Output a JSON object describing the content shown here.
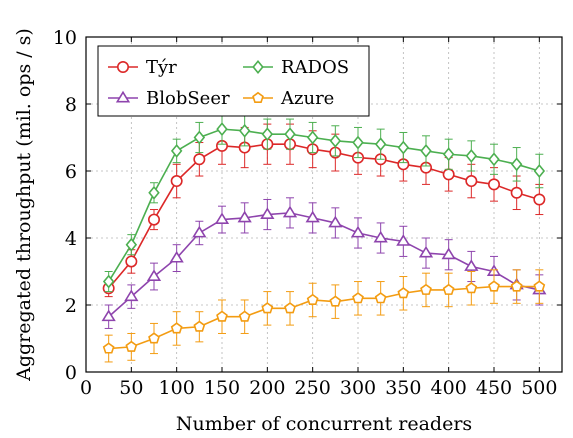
{
  "chart_data": {
    "type": "line",
    "title": "",
    "xlabel": "Number of concurrent readers",
    "ylabel": "Aggregated throughput (mil. ops / s)",
    "xlim": [
      0,
      525
    ],
    "ylim": [
      0,
      10
    ],
    "xticks": [
      0,
      50,
      100,
      150,
      200,
      250,
      300,
      350,
      400,
      450,
      500
    ],
    "yticks": [
      0,
      2,
      4,
      6,
      8,
      10
    ],
    "grid": true,
    "legend_position": "top-left",
    "x": [
      25,
      50,
      75,
      100,
      125,
      150,
      175,
      200,
      225,
      250,
      275,
      300,
      325,
      350,
      375,
      400,
      425,
      450,
      475,
      500
    ],
    "series": [
      {
        "name": "Týr",
        "color": "#dc2828",
        "marker": "circle",
        "values": [
          2.5,
          3.3,
          4.55,
          5.7,
          6.35,
          6.75,
          6.7,
          6.8,
          6.8,
          6.65,
          6.55,
          6.4,
          6.35,
          6.2,
          6.1,
          5.9,
          5.7,
          5.6,
          5.35,
          5.15
        ],
        "errors": [
          0.25,
          0.35,
          0.3,
          0.5,
          0.5,
          0.55,
          0.6,
          0.6,
          0.6,
          0.55,
          0.55,
          0.5,
          0.5,
          0.5,
          0.5,
          0.5,
          0.5,
          0.5,
          0.5,
          0.45
        ]
      },
      {
        "name": "RADOS",
        "color": "#4caf50",
        "marker": "diamond",
        "values": [
          2.7,
          3.8,
          5.35,
          6.6,
          7.0,
          7.25,
          7.2,
          7.1,
          7.1,
          7.0,
          6.9,
          6.85,
          6.8,
          6.7,
          6.6,
          6.5,
          6.45,
          6.35,
          6.2,
          6.0
        ],
        "errors": [
          0.3,
          0.3,
          0.3,
          0.35,
          0.45,
          0.45,
          0.45,
          0.45,
          0.45,
          0.45,
          0.45,
          0.45,
          0.45,
          0.45,
          0.45,
          0.45,
          0.45,
          0.45,
          0.5,
          0.5
        ]
      },
      {
        "name": "BlobSeer",
        "color": "#8e44ad",
        "marker": "triangle",
        "values": [
          1.65,
          2.25,
          2.85,
          3.4,
          4.15,
          4.55,
          4.6,
          4.7,
          4.75,
          4.6,
          4.45,
          4.15,
          4.0,
          3.9,
          3.55,
          3.5,
          3.15,
          3.0,
          2.6,
          2.45
        ],
        "errors": [
          0.35,
          0.35,
          0.4,
          0.4,
          0.35,
          0.4,
          0.45,
          0.45,
          0.45,
          0.45,
          0.45,
          0.45,
          0.45,
          0.45,
          0.45,
          0.45,
          0.45,
          0.45,
          0.45,
          0.45
        ]
      },
      {
        "name": "Azure",
        "color": "#f39c12",
        "marker": "pentagon",
        "values": [
          0.7,
          0.75,
          1.0,
          1.3,
          1.35,
          1.65,
          1.65,
          1.9,
          1.9,
          2.15,
          2.1,
          2.2,
          2.2,
          2.35,
          2.45,
          2.45,
          2.5,
          2.55,
          2.55,
          2.55
        ],
        "errors": [
          0.4,
          0.4,
          0.45,
          0.5,
          0.45,
          0.5,
          0.5,
          0.5,
          0.5,
          0.5,
          0.5,
          0.5,
          0.5,
          0.5,
          0.5,
          0.5,
          0.5,
          0.5,
          0.5,
          0.5
        ]
      }
    ]
  },
  "legend": {
    "entries": [
      "Týr",
      "RADOS",
      "BlobSeer",
      "Azure"
    ]
  }
}
